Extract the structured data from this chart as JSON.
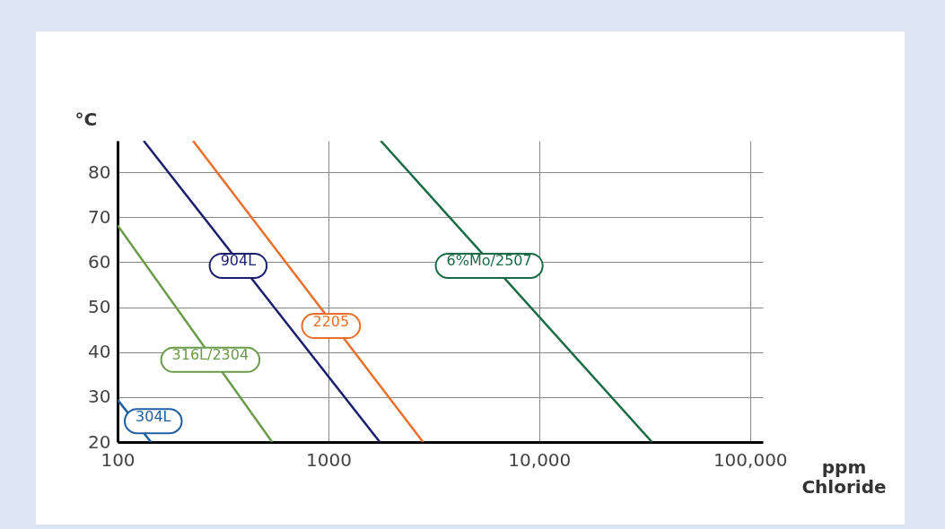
{
  "chart_data": {
    "type": "line",
    "xlabel": "ppm\nChloride",
    "ylabel": "°C",
    "log": "x",
    "grid": true,
    "xlim": [
      100,
      115000
    ],
    "xticks": [
      {
        "value": 100,
        "label": "100"
      },
      {
        "value": 1000,
        "label": "1000"
      },
      {
        "value": 10000,
        "label": "10,000"
      },
      {
        "value": 100000,
        "label": "100,000"
      }
    ],
    "ylim": [
      20,
      87
    ],
    "yticks": [
      20,
      30,
      40,
      50,
      60,
      70,
      80
    ],
    "series": [
      {
        "name": "304L",
        "color": "#1f5fa0",
        "x": [
          100,
          144
        ],
        "values": [
          29.4,
          20
        ]
      },
      {
        "name": "316L/2304",
        "color": "#6a9a4a",
        "x": [
          100,
          541
        ],
        "values": [
          68.2,
          20
        ]
      },
      {
        "name": "904L",
        "color": "#1c1f6e",
        "x": [
          133,
          1754
        ],
        "values": [
          87,
          20
        ]
      },
      {
        "name": "2205",
        "color": "#e8702a",
        "x": [
          228,
          2812
        ],
        "values": [
          87,
          20
        ]
      },
      {
        "name": "6%Mo/2507",
        "color": "#1a6b45",
        "x": [
          1771,
          34270
        ],
        "values": [
          87,
          20
        ]
      }
    ]
  }
}
